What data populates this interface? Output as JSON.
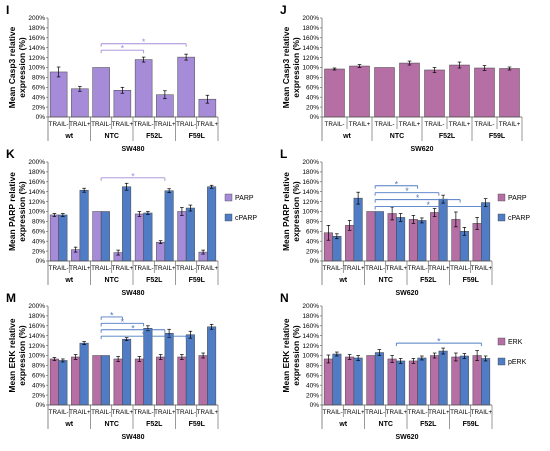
{
  "chart_data": [
    {
      "panel": "I",
      "type": "bar",
      "ylabel": "Mean Casp3 relative expression (%)",
      "ylim": [
        0,
        200
      ],
      "yticks": [
        "0%",
        "20%",
        "40%",
        "60%",
        "80%",
        "100%",
        "120%",
        "140%",
        "160%",
        "180%",
        "200%"
      ],
      "categories": [
        "TRAIL-",
        "TRAIL+",
        "TRAIL-",
        "TRAIL+",
        "TRAIL-",
        "TRAIL+",
        "TRAIL-",
        "TRAIL+"
      ],
      "groups": [
        "wt",
        "NTC",
        "F52L",
        "F59L"
      ],
      "cell_line": "SW480",
      "series": [
        {
          "name": "",
          "color": "#a68bd8",
          "values": [
            91,
            57,
            100,
            54,
            116,
            45,
            121,
            36
          ],
          "errors": [
            10,
            5,
            0,
            6,
            5,
            8,
            6,
            8
          ]
        }
      ],
      "legend": [],
      "sig": [
        {
          "from": 2,
          "to": 4,
          "y": 135,
          "color": "#a68bd8"
        },
        {
          "from": 2,
          "to": 6,
          "y": 148,
          "color": "#a68bd8"
        }
      ]
    },
    {
      "panel": "J",
      "type": "bar",
      "ylabel": "Mean Casp3 relative expression (%)",
      "ylim": [
        0,
        200
      ],
      "yticks": [
        "0%",
        "20%",
        "40%",
        "60%",
        "80%",
        "100%",
        "120%",
        "140%",
        "160%",
        "180%",
        "200%"
      ],
      "categories": [
        "TRAIL-",
        "TRAIL+",
        "TRAIL-",
        "TRAIL+",
        "TRAIL-",
        "TRAIL+",
        "TRAIL-",
        "TRAIL+"
      ],
      "groups": [
        "wt",
        "NTC",
        "F52L",
        "F59L"
      ],
      "cell_line": "SW620",
      "series": [
        {
          "name": "",
          "color": "#b56fa4",
          "values": [
            97,
            103,
            100,
            109,
            95,
            105,
            99,
            98
          ],
          "errors": [
            2,
            3,
            0,
            4,
            5,
            6,
            5,
            3
          ]
        }
      ],
      "legend": [],
      "sig": []
    },
    {
      "panel": "K",
      "type": "bar",
      "ylabel": "Mean PARP relative expression (%)",
      "ylim": [
        0,
        200
      ],
      "yticks": [
        "0%",
        "20%",
        "40%",
        "60%",
        "80%",
        "100%",
        "120%",
        "140%",
        "160%",
        "180%",
        "200%"
      ],
      "categories": [
        "TRAIL-",
        "TRAIL+",
        "TRAIL-",
        "TRAIL+",
        "TRAIL-",
        "TRAIL+",
        "TRAIL-",
        "TRAIL+"
      ],
      "groups": [
        "wt",
        "NTC",
        "F52L",
        "F59L"
      ],
      "cell_line": "SW480",
      "series": [
        {
          "name": "PARP",
          "color": "#a68bd8",
          "values": [
            93,
            23,
            100,
            17,
            95,
            38,
            100,
            18
          ],
          "errors": [
            3,
            5,
            0,
            5,
            5,
            3,
            8,
            4
          ]
        },
        {
          "name": "cPARP",
          "color": "#4f7cc4",
          "values": [
            93,
            143,
            100,
            150,
            97,
            142,
            107,
            150
          ],
          "errors": [
            3,
            4,
            0,
            7,
            3,
            4,
            6,
            3
          ]
        }
      ],
      "legend": [
        "PARP",
        "cPARP"
      ],
      "sig": [
        {
          "from": 2,
          "to": 5,
          "y": 168,
          "color": "#a68bd8"
        }
      ]
    },
    {
      "panel": "L",
      "type": "bar",
      "ylabel": "Mean PARP relative expression (%)",
      "ylim": [
        0,
        200
      ],
      "yticks": [
        "0%",
        "20%",
        "40%",
        "60%",
        "80%",
        "100%",
        "120%",
        "140%",
        "160%",
        "180%",
        "200%"
      ],
      "categories": [
        "TRAIL-",
        "TRAIL+",
        "TRAIL-",
        "TRAIL+",
        "TRAIL-",
        "TRAIL+",
        "TRAIL-",
        "TRAIL+"
      ],
      "groups": [
        "wt",
        "NTC",
        "F52L",
        "F59L"
      ],
      "cell_line": "SW620",
      "series": [
        {
          "name": "PARP",
          "color": "#b56fa4",
          "values": [
            57,
            72,
            100,
            96,
            84,
            98,
            84,
            76
          ],
          "errors": [
            15,
            10,
            0,
            13,
            8,
            8,
            15,
            12
          ]
        },
        {
          "name": "cPARP",
          "color": "#4f7cc4",
          "values": [
            50,
            127,
            100,
            88,
            82,
            125,
            60,
            118
          ],
          "errors": [
            5,
            12,
            0,
            8,
            5,
            8,
            8,
            8
          ]
        }
      ],
      "legend": [
        "PARP",
        "cPARP"
      ],
      "sig": [
        {
          "from": 2,
          "to": 4,
          "y": 152,
          "color": "#4f7cc4"
        },
        {
          "from": 2,
          "to": 5,
          "y": 138,
          "color": "#4f7cc4"
        },
        {
          "from": 2,
          "to": 6,
          "y": 124,
          "color": "#4f7cc4"
        },
        {
          "from": 2,
          "to": 7,
          "y": 110,
          "color": "#4f7cc4"
        }
      ]
    },
    {
      "panel": "M",
      "type": "bar",
      "ylabel": "Mean ERK relative expression (%)",
      "ylim": [
        0,
        200
      ],
      "yticks": [
        "0%",
        "20%",
        "40%",
        "60%",
        "80%",
        "100%",
        "120%",
        "140%",
        "160%",
        "180%",
        "200%"
      ],
      "categories": [
        "TRAIL-",
        "TRAIL+",
        "TRAIL-",
        "TRAIL+",
        "TRAIL-",
        "TRAIL+",
        "TRAIL-",
        "TRAIL+"
      ],
      "groups": [
        "wt",
        "NTC",
        "F52L",
        "F59L"
      ],
      "cell_line": "SW480",
      "series": [
        {
          "name": "ERK",
          "color": "#b56fa4",
          "values": [
            93,
            97,
            100,
            93,
            93,
            97,
            97,
            100
          ],
          "errors": [
            3,
            5,
            0,
            5,
            5,
            5,
            5,
            5
          ]
        },
        {
          "name": "pERK",
          "color": "#4f7cc4",
          "values": [
            90,
            125,
            100,
            133,
            155,
            145,
            142,
            158
          ],
          "errors": [
            3,
            3,
            0,
            3,
            5,
            8,
            7,
            5
          ]
        }
      ],
      "legend": [],
      "sig": [
        {
          "from": 2,
          "to": 3,
          "y": 178,
          "color": "#4f7cc4"
        },
        {
          "from": 2,
          "to": 4,
          "y": 165,
          "color": "#4f7cc4"
        },
        {
          "from": 2,
          "to": 5,
          "y": 152,
          "color": "#4f7cc4"
        },
        {
          "from": 2,
          "to": 6,
          "y": 139,
          "color": "#4f7cc4"
        }
      ]
    },
    {
      "panel": "N",
      "type": "bar",
      "ylabel": "Mean ERK relative expression (%)",
      "ylim": [
        0,
        200
      ],
      "yticks": [
        "0%",
        "20%",
        "40%",
        "60%",
        "80%",
        "100%",
        "120%",
        "140%",
        "160%",
        "180%",
        "200%"
      ],
      "categories": [
        "TRAIL-",
        "TRAIL+",
        "TRAIL-",
        "TRAIL+",
        "TRAIL-",
        "TRAIL+",
        "TRAIL-",
        "TRAIL+"
      ],
      "groups": [
        "wt",
        "NTC",
        "F52L",
        "F59L"
      ],
      "cell_line": "SW620",
      "series": [
        {
          "name": "ERK",
          "color": "#b56fa4",
          "values": [
            93,
            97,
            100,
            93,
            89,
            100,
            97,
            100
          ],
          "errors": [
            8,
            5,
            0,
            7,
            5,
            5,
            8,
            10
          ]
        },
        {
          "name": "pERK",
          "color": "#4f7cc4",
          "values": [
            103,
            95,
            106,
            89,
            95,
            109,
            99,
            94
          ],
          "errors": [
            4,
            5,
            6,
            5,
            4,
            6,
            5,
            5
          ]
        }
      ],
      "legend": [
        "ERK",
        "pERK"
      ],
      "sig": [
        {
          "from": 3,
          "to": 7,
          "y": 125,
          "color": "#4f7cc4"
        }
      ]
    }
  ]
}
